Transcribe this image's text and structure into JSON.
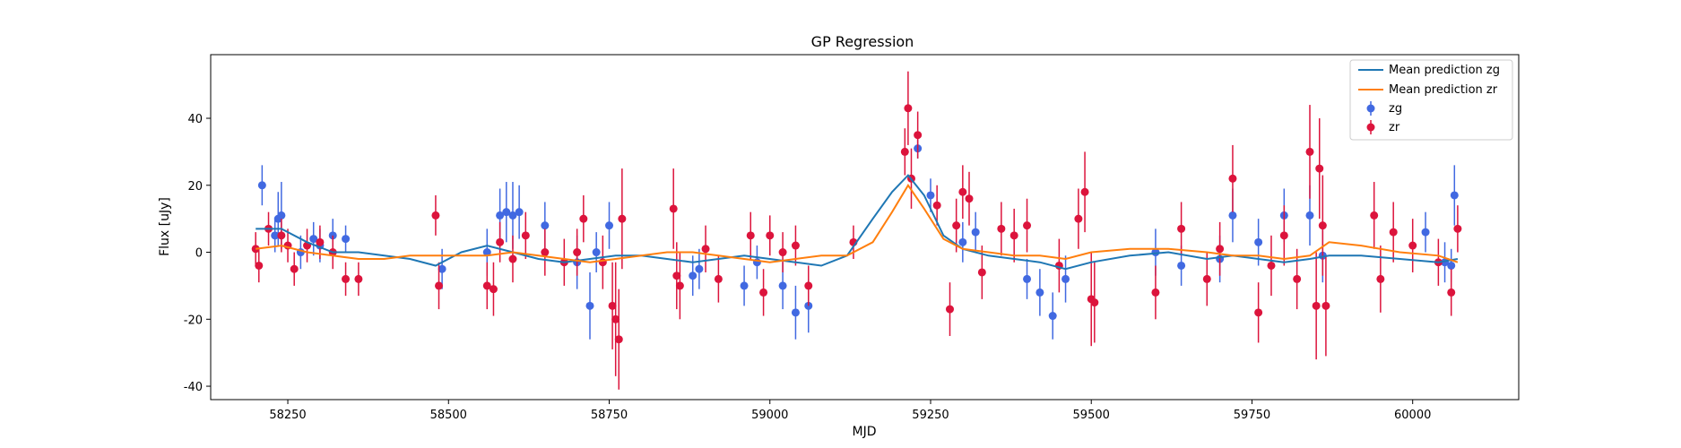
{
  "chart_data": {
    "type": "scatter",
    "title": "GP Regression",
    "xlabel": "MJD",
    "ylabel": "Flux [uJy]",
    "xlim": [
      58130,
      60165
    ],
    "ylim": [
      -44,
      59
    ],
    "xticks": [
      58250,
      58500,
      58750,
      59000,
      59250,
      59500,
      59750,
      60000
    ],
    "yticks": [
      -40,
      -20,
      0,
      20,
      40
    ],
    "grid": false,
    "legend_position": "top-right",
    "series": [
      {
        "name": "Mean prediction zg",
        "kind": "line",
        "color": "#1f77b4",
        "x": [
          58200,
          58240,
          58280,
          58320,
          58360,
          58400,
          58440,
          58480,
          58520,
          58560,
          58600,
          58640,
          58680,
          58720,
          58760,
          58800,
          58840,
          58880,
          58920,
          58960,
          59000,
          59040,
          59080,
          59120,
          59160,
          59190,
          59215,
          59240,
          59270,
          59300,
          59340,
          59380,
          59420,
          59460,
          59500,
          59560,
          59620,
          59680,
          59720,
          59760,
          59800,
          59840,
          59870,
          59920,
          59980,
          60040,
          60070
        ],
        "y": [
          7,
          7,
          3,
          0,
          0,
          -1,
          -2,
          -4,
          0,
          2,
          0,
          -2,
          -3,
          -2,
          -1,
          -1,
          -2,
          -3,
          -2,
          -1,
          -2,
          -3,
          -4,
          -1,
          10,
          18,
          23,
          17,
          5,
          1,
          -1,
          -2,
          -3,
          -5,
          -3,
          -1,
          0,
          -2,
          -1,
          -2,
          -3,
          -2,
          -1,
          -1,
          -2,
          -3,
          -2
        ]
      },
      {
        "name": "Mean prediction zr",
        "kind": "line",
        "color": "#ff7f0e",
        "x": [
          58200,
          58240,
          58280,
          58320,
          58360,
          58400,
          58440,
          58480,
          58520,
          58560,
          58600,
          58640,
          58680,
          58720,
          58760,
          58800,
          58840,
          58880,
          58920,
          58960,
          59000,
          59040,
          59080,
          59120,
          59160,
          59190,
          59215,
          59240,
          59270,
          59300,
          59340,
          59380,
          59420,
          59460,
          59500,
          59560,
          59620,
          59680,
          59720,
          59760,
          59800,
          59840,
          59870,
          59920,
          59980,
          60040,
          60070
        ],
        "y": [
          1,
          2,
          0,
          -1,
          -2,
          -2,
          -1,
          -1,
          -1,
          -1,
          0,
          -1,
          -2,
          -3,
          -2,
          -1,
          0,
          0,
          -1,
          -2,
          -3,
          -2,
          -1,
          -1,
          3,
          12,
          20,
          13,
          4,
          1,
          0,
          -1,
          -1,
          -2,
          0,
          1,
          1,
          0,
          -1,
          -1,
          -2,
          -1,
          3,
          2,
          0,
          -1,
          -3
        ]
      },
      {
        "name": "zg",
        "kind": "errorbar",
        "color": "#4169e1",
        "x": [
          58210,
          58230,
          58235,
          58240,
          58270,
          58290,
          58300,
          58320,
          58340,
          58490,
          58560,
          58580,
          58590,
          58600,
          58610,
          58650,
          58700,
          58720,
          58730,
          58750,
          58880,
          58890,
          58960,
          58980,
          59020,
          59040,
          59060,
          59230,
          59250,
          59300,
          59320,
          59400,
          59420,
          59440,
          59460,
          59600,
          59640,
          59700,
          59720,
          59760,
          59800,
          59840,
          59860,
          60020,
          60050,
          60060,
          60065
        ],
        "y": [
          20,
          5,
          10,
          11,
          0,
          4,
          2,
          5,
          4,
          -5,
          0,
          11,
          12,
          11,
          12,
          8,
          -3,
          -16,
          0,
          8,
          -7,
          -5,
          -10,
          -3,
          -10,
          -18,
          -16,
          31,
          17,
          3,
          6,
          -8,
          -12,
          -19,
          -8,
          0,
          -4,
          -2,
          11,
          3,
          11,
          11,
          -1,
          6,
          -3,
          -4,
          17
        ],
        "yerr": [
          6,
          5,
          8,
          10,
          5,
          5,
          5,
          5,
          4,
          6,
          7,
          8,
          9,
          10,
          8,
          7,
          8,
          10,
          6,
          7,
          6,
          6,
          6,
          5,
          7,
          8,
          8,
          3,
          5,
          6,
          6,
          6,
          7,
          7,
          7,
          7,
          6,
          7,
          8,
          7,
          8,
          9,
          8,
          6,
          6,
          5,
          9
        ]
      },
      {
        "name": "zr",
        "kind": "errorbar",
        "color": "#dc143c",
        "x": [
          58200,
          58205,
          58220,
          58240,
          58250,
          58260,
          58280,
          58300,
          58320,
          58340,
          58360,
          58480,
          58485,
          58560,
          58570,
          58580,
          58600,
          58620,
          58650,
          58680,
          58700,
          58710,
          58740,
          58755,
          58760,
          58765,
          58770,
          58850,
          58855,
          58860,
          58900,
          58920,
          58970,
          58990,
          59000,
          59020,
          59040,
          59060,
          59130,
          59210,
          59215,
          59220,
          59230,
          59260,
          59280,
          59290,
          59300,
          59310,
          59330,
          59360,
          59380,
          59400,
          59450,
          59480,
          59490,
          59500,
          59505,
          59600,
          59640,
          59680,
          59700,
          59720,
          59760,
          59780,
          59800,
          59820,
          59840,
          59850,
          59855,
          59860,
          59865,
          59940,
          59950,
          59970,
          60000,
          60040,
          60060,
          60070
        ],
        "y": [
          1,
          -4,
          7,
          5,
          2,
          -5,
          2,
          3,
          0,
          -8,
          -8,
          11,
          -10,
          -10,
          -11,
          3,
          -2,
          5,
          0,
          -3,
          0,
          10,
          -3,
          -16,
          -20,
          -26,
          10,
          13,
          -7,
          -10,
          1,
          -8,
          5,
          -12,
          5,
          0,
          2,
          -10,
          3,
          30,
          43,
          22,
          35,
          14,
          -17,
          8,
          18,
          16,
          -6,
          7,
          5,
          8,
          -4,
          10,
          18,
          -14,
          -15,
          -12,
          7,
          -8,
          1,
          22,
          -18,
          -4,
          5,
          -8,
          30,
          -16,
          25,
          8,
          -16,
          11,
          -8,
          6,
          2,
          -3,
          -12,
          7
        ],
        "yerr": [
          5,
          5,
          5,
          5,
          5,
          5,
          5,
          5,
          5,
          5,
          5,
          6,
          7,
          7,
          8,
          6,
          7,
          7,
          7,
          7,
          7,
          7,
          8,
          13,
          17,
          15,
          15,
          12,
          10,
          10,
          7,
          7,
          7,
          7,
          6,
          6,
          6,
          6,
          5,
          7,
          11,
          9,
          7,
          6,
          8,
          8,
          8,
          8,
          8,
          8,
          8,
          8,
          8,
          9,
          12,
          14,
          12,
          8,
          8,
          8,
          8,
          10,
          9,
          9,
          9,
          9,
          14,
          16,
          15,
          15,
          15,
          10,
          10,
          9,
          8,
          7,
          7,
          7
        ]
      }
    ]
  }
}
